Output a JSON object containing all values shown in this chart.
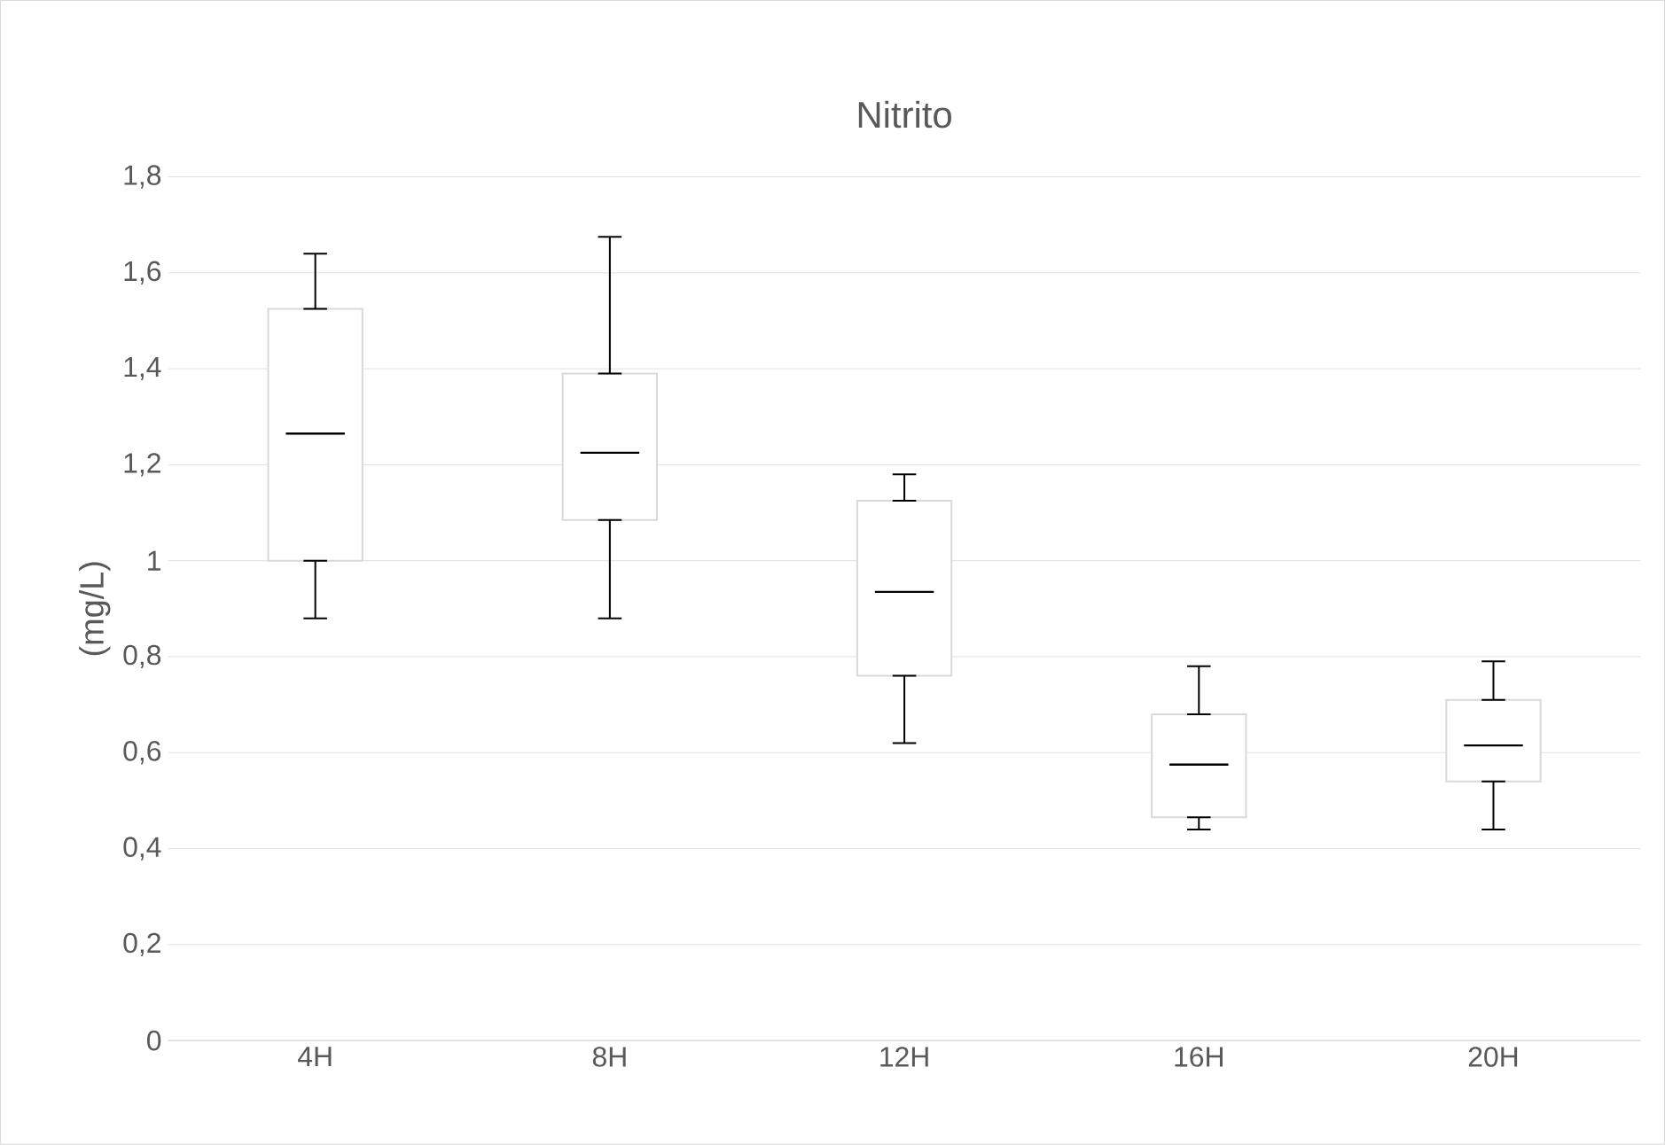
{
  "chart_data": {
    "type": "box",
    "title": "Nitrito",
    "ylabel": "(mg/L)",
    "categories": [
      "4H",
      "8H",
      "12H",
      "16H",
      "20H"
    ],
    "boxes": [
      {
        "low": 0.88,
        "q1": 1.0,
        "median": 1.265,
        "q3": 1.525,
        "high": 1.64
      },
      {
        "low": 0.88,
        "q1": 1.085,
        "median": 1.225,
        "q3": 1.39,
        "high": 1.675
      },
      {
        "low": 0.62,
        "q1": 0.76,
        "median": 0.935,
        "q3": 1.125,
        "high": 1.18
      },
      {
        "low": 0.44,
        "q1": 0.465,
        "median": 0.575,
        "q3": 0.68,
        "high": 0.78
      },
      {
        "low": 0.44,
        "q1": 0.54,
        "median": 0.615,
        "q3": 0.71,
        "high": 0.79
      }
    ],
    "color": "#d9d9d9",
    "ylim": [
      0,
      1.8
    ],
    "yticks": [
      0,
      {
        "value": 0.2,
        "label": "0,2"
      },
      {
        "value": 0.4,
        "label": "0,4"
      },
      {
        "value": 0.6,
        "label": "0,6"
      },
      {
        "value": 0.8,
        "label": "0,8"
      },
      1,
      {
        "value": 1.2,
        "label": "1,2"
      },
      {
        "value": 1.4,
        "label": "1,4"
      },
      {
        "value": 1.6,
        "label": "1,6"
      },
      {
        "value": 1.8,
        "label": "1,8"
      }
    ],
    "grid": "y"
  }
}
